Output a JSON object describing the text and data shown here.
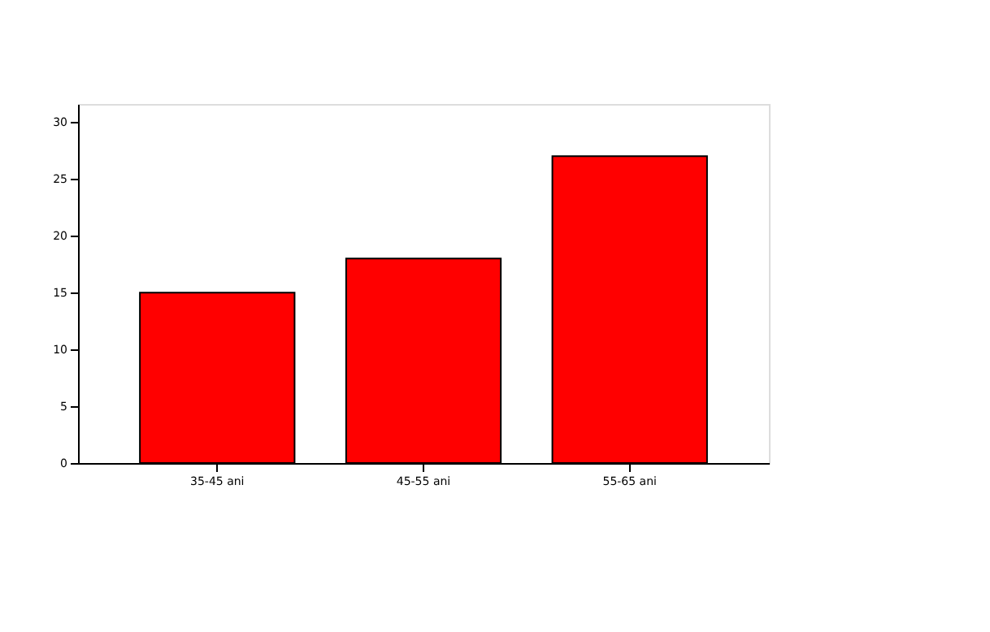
{
  "chart_data": {
    "type": "bar",
    "categories": [
      "35-45 ani",
      "45-55 ani",
      "55-65 ani"
    ],
    "values": [
      15,
      18,
      27
    ],
    "color": "#ff0000",
    "ylim": [
      0,
      31.6
    ],
    "yticks": [
      0,
      5,
      10,
      15,
      20,
      25,
      30
    ],
    "grid": false
  }
}
